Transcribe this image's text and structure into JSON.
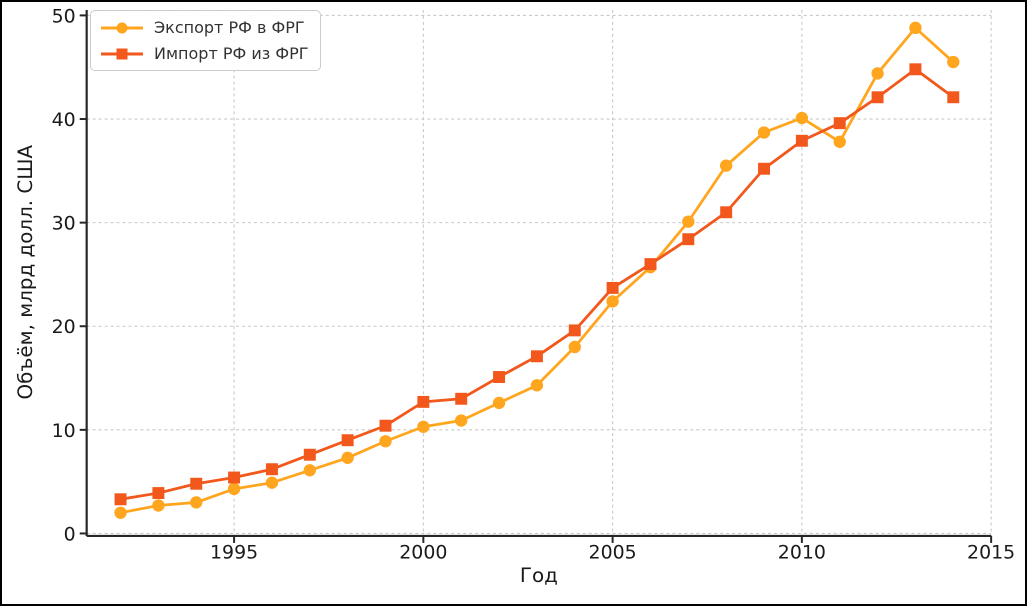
{
  "figure": {
    "background_color": "#ffffff",
    "frame_color": "#000000"
  },
  "chart_data": {
    "type": "line",
    "title": "",
    "xlabel": "Год",
    "ylabel": "Объём, млрд долл. США",
    "x": [
      1992,
      1993,
      1994,
      1995,
      1996,
      1997,
      1998,
      1999,
      2000,
      2001,
      2002,
      2003,
      2004,
      2005,
      2006,
      2007,
      2008,
      2009,
      2010,
      2011,
      2012,
      2013,
      2014
    ],
    "series": [
      {
        "name": "Экспорт РФ в ФРГ",
        "marker": "circle",
        "color": "#FFA51E",
        "values": [
          2.0,
          2.7,
          3.0,
          4.3,
          4.9,
          6.1,
          7.3,
          8.9,
          10.3,
          10.9,
          12.6,
          14.3,
          18.0,
          22.4,
          25.7,
          30.1,
          35.5,
          38.7,
          40.1,
          37.8,
          44.4,
          48.8,
          45.5
        ]
      },
      {
        "name": "Импорт РФ из ФРГ",
        "marker": "square",
        "color": "#F2571B",
        "values": [
          3.3,
          3.9,
          4.8,
          5.4,
          6.2,
          7.6,
          9.0,
          10.4,
          12.7,
          13.0,
          15.1,
          17.1,
          19.6,
          23.7,
          26.0,
          28.4,
          31.0,
          35.2,
          37.9,
          39.6,
          42.1,
          44.8,
          42.1
        ]
      }
    ],
    "xticks": [
      1995,
      2000,
      2005,
      2010,
      2015
    ],
    "yticks": [
      0,
      10,
      20,
      30,
      40,
      50
    ],
    "xlim": [
      1991.1,
      2015.3
    ],
    "ylim": [
      -0.25,
      50.6
    ],
    "grid": true,
    "grid_style": "dashed",
    "legend_position": "upper-left"
  }
}
